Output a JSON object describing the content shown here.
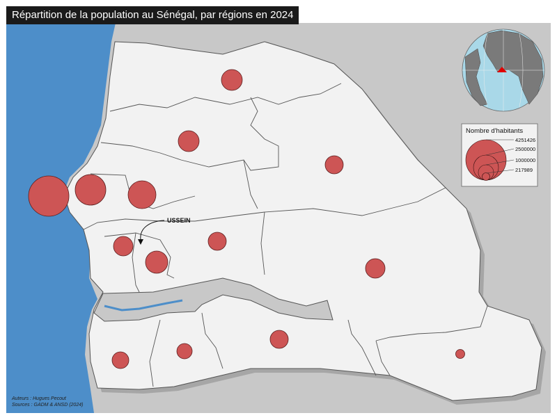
{
  "title": "Répartition de la population au Sénégal, par régions en 2024",
  "callout": "USSEIN",
  "legend": {
    "title": "Nombre d'habitants",
    "values": [
      "4251426",
      "2500000",
      "1000000",
      "217989"
    ]
  },
  "credits": {
    "authors": "Auteurs : Hugues Pecout",
    "sources": "Sources : GADM & ANSD (2024)"
  },
  "colors": {
    "ocean": "#4d8ec9",
    "land": "#f2f2f2",
    "neighbors": "#c8c8c8",
    "gambia": "#c8c8c8",
    "symbol": "#cd5555",
    "globe_ocean": "#a9d8e8",
    "globe_land": "#7a7a7a",
    "marker": "#e00000"
  },
  "icons": [
    "globe-locator-icon",
    "callout-arrow-icon"
  ]
}
